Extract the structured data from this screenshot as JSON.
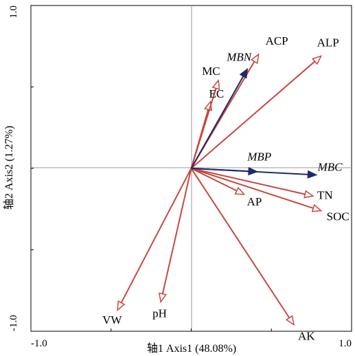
{
  "chart_data": {
    "type": "biplot",
    "xlabel": "轴1 Axis1 (48.08%)",
    "ylabel": "轴2 Axis2 (1.27%)",
    "xlim": [
      -1.0,
      1.0
    ],
    "ylim": [
      -1.0,
      1.0
    ],
    "x_tick_labels": [
      "-1.0",
      "1.0"
    ],
    "y_tick_labels": [
      "1.0",
      "-1.0"
    ],
    "grid": false,
    "series": [
      {
        "name": "",
        "color": "#c8473f",
        "vectors": [
          {
            "label": "ACP",
            "italic": false,
            "x": 0.42,
            "y": 0.7
          },
          {
            "label": "ALP",
            "italic": false,
            "x": 0.81,
            "y": 0.69
          },
          {
            "label": "MC",
            "italic": false,
            "x": 0.17,
            "y": 0.54
          },
          {
            "label": "EC",
            "italic": false,
            "x": 0.12,
            "y": 0.41
          },
          {
            "label": "AP",
            "italic": false,
            "x": 0.33,
            "y": -0.16
          },
          {
            "label": "TN",
            "italic": false,
            "x": 0.76,
            "y": -0.17
          },
          {
            "label": "SOC",
            "italic": false,
            "x": 0.81,
            "y": -0.26
          },
          {
            "label": "AK",
            "italic": false,
            "x": 0.64,
            "y": -0.96
          },
          {
            "label": "VW",
            "italic": false,
            "x": -0.46,
            "y": -0.87
          },
          {
            "label": "pH",
            "italic": false,
            "x": -0.19,
            "y": -0.82
          }
        ]
      },
      {
        "name": "",
        "color": "#1f2a6b",
        "vectors": [
          {
            "label": "MBN",
            "italic": true,
            "x": 0.35,
            "y": 0.61
          },
          {
            "label": "MBP",
            "italic": true,
            "x": 0.41,
            "y": -0.02
          },
          {
            "label": "MBC",
            "italic": true,
            "x": 0.78,
            "y": -0.04
          }
        ]
      }
    ]
  }
}
